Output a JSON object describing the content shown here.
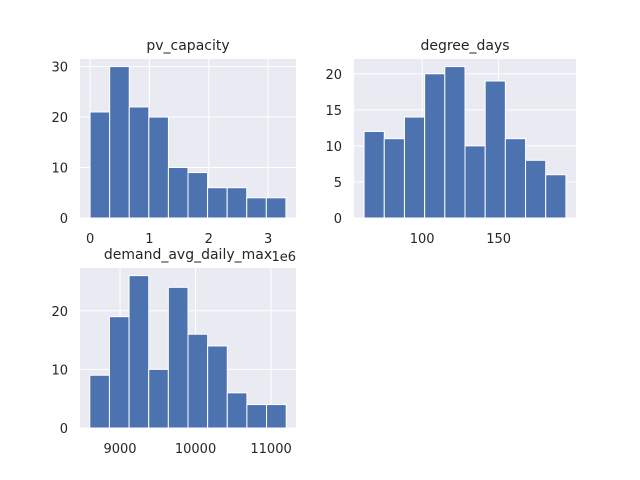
{
  "chart_data": [
    {
      "type": "bar",
      "title": "pv_capacity",
      "bin_edges": [
        0.0,
        0.33,
        0.66,
        0.99,
        1.32,
        1.65,
        1.98,
        2.31,
        2.64,
        2.97,
        3.3
      ],
      "values": [
        21,
        30,
        22,
        20,
        10,
        9,
        6,
        6,
        4,
        4
      ],
      "xlim": [
        -0.17,
        3.47
      ],
      "ylim": [
        0,
        31.5
      ],
      "xticks": [
        0,
        1,
        2,
        3
      ],
      "yticks": [
        0,
        10,
        20,
        30
      ],
      "x_offset_label": "1e6",
      "grid": true,
      "color": "#4c72b0"
    },
    {
      "type": "bar",
      "title": "degree_days",
      "bin_edges": [
        62,
        75.2,
        88.4,
        101.6,
        114.8,
        128,
        141.2,
        154.4,
        167.6,
        180.8,
        194
      ],
      "values": [
        12,
        11,
        14,
        20,
        21,
        10,
        19,
        11,
        8,
        6
      ],
      "xlim": [
        55.4,
        200.6
      ],
      "ylim": [
        0,
        22.05
      ],
      "xticks": [
        100,
        150
      ],
      "yticks": [
        0,
        5,
        10,
        15,
        20
      ],
      "grid": true,
      "color": "#4c72b0"
    },
    {
      "type": "bar",
      "title": "demand_avg_daily_max",
      "bin_edges": [
        8600,
        8860,
        9120,
        9380,
        9640,
        9900,
        10160,
        10420,
        10680,
        10940,
        11200
      ],
      "values": [
        9,
        19,
        26,
        10,
        24,
        16,
        14,
        6,
        4,
        4
      ],
      "xlim": [
        8470,
        11330
      ],
      "ylim": [
        0,
        27.3
      ],
      "xticks": [
        9000,
        10000,
        11000
      ],
      "yticks": [
        0,
        10,
        20
      ],
      "grid": true,
      "color": "#4c72b0"
    }
  ]
}
